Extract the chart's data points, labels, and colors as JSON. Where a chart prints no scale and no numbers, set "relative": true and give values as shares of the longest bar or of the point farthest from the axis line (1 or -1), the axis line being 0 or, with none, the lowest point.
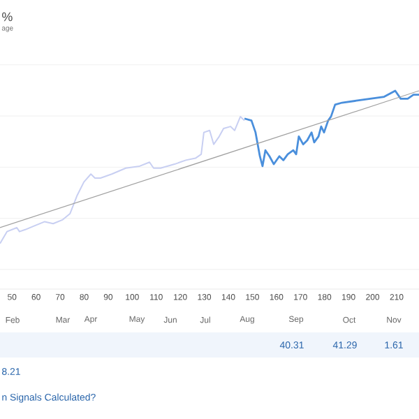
{
  "chart_data": {
    "type": "line",
    "relative": true,
    "grid": "y",
    "xlim": [
      45,
      219.3
    ],
    "xticks": [
      50,
      60,
      70,
      80,
      90,
      100,
      110,
      120,
      130,
      140,
      150,
      160,
      170,
      180,
      190,
      200,
      210
    ],
    "annotations": [
      "%",
      "age",
      "40.31",
      "41.29",
      "1.61",
      "8.21",
      "n Signals Calculated?",
      "Feb",
      "Mar",
      "Apr",
      "May",
      "Jun",
      "Jul",
      "Aug",
      "Sep",
      "Oct",
      "Nov"
    ],
    "series": [
      {
        "color": "#c8cff2",
        "x": [
          45,
          47.9,
          52,
          53.1,
          55.5,
          59.5,
          63.6,
          67.1,
          71.1,
          74.1,
          77,
          79.9,
          82.8,
          84.5,
          86.8,
          91.5,
          97.3,
          103.1,
          107.2,
          108.9,
          111.8,
          117.6,
          122.3,
          126.3,
          128.7,
          129.8,
          132.2,
          133.9,
          136.2,
          138,
          140.9,
          142.6,
          145,
          146.7
        ],
        "values": [
          0.23,
          0.29,
          0.31,
          0.29,
          0.3,
          0.32,
          0.34,
          0.33,
          0.35,
          0.38,
          0.47,
          0.54,
          0.58,
          0.56,
          0.56,
          0.58,
          0.61,
          0.62,
          0.64,
          0.61,
          0.61,
          0.63,
          0.65,
          0.66,
          0.68,
          0.79,
          0.8,
          0.73,
          0.77,
          0.81,
          0.82,
          0.8,
          0.87,
          0.85
        ]
      },
      {
        "color": "#4a8fdc",
        "x": [
          146.7,
          149.6,
          151.3,
          153.1,
          154.2,
          155.4,
          157.1,
          158.9,
          161.2,
          162.9,
          164.7,
          167,
          168.2,
          169.3,
          171.1,
          172.8,
          174.6,
          175.7,
          177.5,
          178.6,
          179.8,
          181.5,
          182.7,
          184.4,
          187.3,
          193.2,
          199,
          204.8,
          209.4,
          211.7,
          214.6,
          217,
          219.3
        ],
        "values": [
          0.86,
          0.85,
          0.79,
          0.67,
          0.62,
          0.7,
          0.67,
          0.63,
          0.67,
          0.65,
          0.68,
          0.7,
          0.68,
          0.77,
          0.73,
          0.75,
          0.79,
          0.74,
          0.77,
          0.82,
          0.79,
          0.85,
          0.87,
          0.93,
          0.94,
          0.95,
          0.96,
          0.97,
          1.0,
          0.96,
          0.96,
          0.98,
          0.98
        ]
      },
      {
        "color": "#a0a0a0",
        "x": [
          45,
          219.3
        ],
        "values": [
          0.31,
          1.0
        ]
      }
    ]
  }
}
